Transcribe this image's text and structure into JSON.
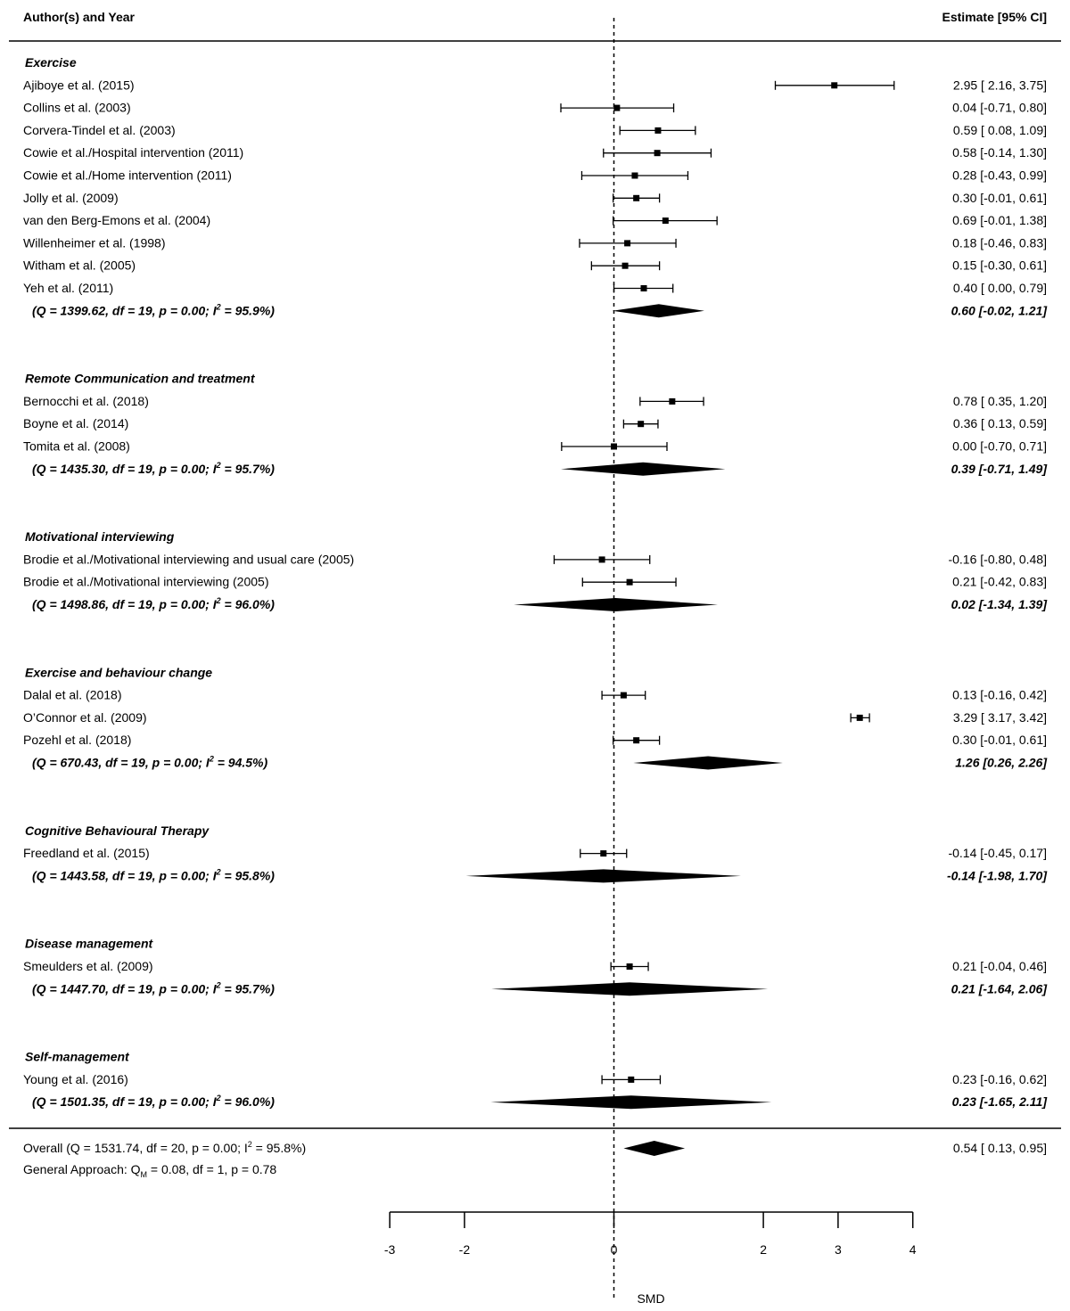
{
  "chart_data": {
    "type": "forest",
    "header": {
      "left": "Author(s) and Year",
      "right": "Estimate [95% CI]"
    },
    "groups": [
      {
        "name": "Exercise",
        "studies": [
          {
            "label": "Ajiboye et al. (2015)",
            "est": 2.95,
            "lo": 2.16,
            "hi": 3.75,
            "text": "2.95 [ 2.16, 3.75]"
          },
          {
            "label": "Collins et al. (2003)",
            "est": 0.04,
            "lo": -0.71,
            "hi": 0.8,
            "text": "0.04 [-0.71, 0.80]"
          },
          {
            "label": "Corvera-Tindel et al. (2003)",
            "est": 0.59,
            "lo": 0.08,
            "hi": 1.09,
            "text": "0.59 [ 0.08, 1.09]"
          },
          {
            "label": "Cowie et al./Hospital intervention (2011)",
            "est": 0.58,
            "lo": -0.14,
            "hi": 1.3,
            "text": "0.58 [-0.14, 1.30]"
          },
          {
            "label": "Cowie et al./Home intervention (2011)",
            "est": 0.28,
            "lo": -0.43,
            "hi": 0.99,
            "text": "0.28 [-0.43, 0.99]"
          },
          {
            "label": "Jolly et al. (2009)",
            "est": 0.3,
            "lo": -0.01,
            "hi": 0.61,
            "text": "0.30 [-0.01, 0.61]"
          },
          {
            "label": "van den Berg-Emons et al. (2004)",
            "est": 0.69,
            "lo": -0.01,
            "hi": 1.38,
            "text": "0.69 [-0.01, 1.38]"
          },
          {
            "label": "Willenheimer et al. (1998)",
            "est": 0.18,
            "lo": -0.46,
            "hi": 0.83,
            "text": "0.18 [-0.46, 0.83]"
          },
          {
            "label": "Witham et al. (2005)",
            "est": 0.15,
            "lo": -0.3,
            "hi": 0.61,
            "text": "0.15 [-0.30, 0.61]"
          },
          {
            "label": "Yeh et al. (2011)",
            "est": 0.4,
            "lo": 0.0,
            "hi": 0.79,
            "text": "0.40 [ 0.00, 0.79]"
          }
        ],
        "summary": {
          "q_text": "(Q = 1399.62, df = 19, p = 0.00; I",
          "pct_text": " = 95.9%)",
          "est": 0.6,
          "lo": -0.02,
          "hi": 1.21,
          "text": "0.60 [-0.02, 1.21]"
        }
      },
      {
        "name": "Remote Communication and treatment",
        "studies": [
          {
            "label": "Bernocchi et al. (2018)",
            "est": 0.78,
            "lo": 0.35,
            "hi": 1.2,
            "text": "0.78 [ 0.35, 1.20]"
          },
          {
            "label": "Boyne et al. (2014)",
            "est": 0.36,
            "lo": 0.13,
            "hi": 0.59,
            "text": "0.36 [ 0.13, 0.59]"
          },
          {
            "label": "Tomita et al. (2008)",
            "est": 0.0,
            "lo": -0.7,
            "hi": 0.71,
            "text": "0.00 [-0.70, 0.71]"
          }
        ],
        "summary": {
          "q_text": "(Q = 1435.30, df = 19, p = 0.00; I",
          "pct_text": " = 95.7%)",
          "est": 0.39,
          "lo": -0.71,
          "hi": 1.49,
          "text": "0.39 [-0.71, 1.49]"
        }
      },
      {
        "name": "Motivational interviewing",
        "studies": [
          {
            "label": "Brodie et al./Motivational interviewing and usual care (2005)",
            "est": -0.16,
            "lo": -0.8,
            "hi": 0.48,
            "text": "-0.16 [-0.80, 0.48]"
          },
          {
            "label": "Brodie et al./Motivational interviewing (2005)",
            "est": 0.21,
            "lo": -0.42,
            "hi": 0.83,
            "text": "0.21 [-0.42, 0.83]"
          }
        ],
        "summary": {
          "q_text": "(Q = 1498.86, df = 19, p = 0.00; I",
          "pct_text": " = 96.0%)",
          "est": 0.02,
          "lo": -1.34,
          "hi": 1.39,
          "text": "0.02 [-1.34, 1.39]"
        }
      },
      {
        "name": "Exercise and behaviour change",
        "studies": [
          {
            "label": "Dalal et al. (2018)",
            "est": 0.13,
            "lo": -0.16,
            "hi": 0.42,
            "text": "0.13 [-0.16, 0.42]"
          },
          {
            "label": "O’Connor et al. (2009)",
            "est": 3.29,
            "lo": 3.17,
            "hi": 3.42,
            "text": "3.29 [ 3.17, 3.42]"
          },
          {
            "label": "Pozehl et al. (2018)",
            "est": 0.3,
            "lo": -0.01,
            "hi": 0.61,
            "text": "0.30 [-0.01, 0.61]"
          }
        ],
        "summary": {
          "q_text": "(Q = 670.43, df = 19, p = 0.00; I",
          "pct_text": " = 94.5%)",
          "est": 1.26,
          "lo": 0.26,
          "hi": 2.26,
          "text": "1.26 [0.26, 2.26]"
        }
      },
      {
        "name": "Cognitive Behavioural Therapy",
        "studies": [
          {
            "label": "Freedland et al. (2015)",
            "est": -0.14,
            "lo": -0.45,
            "hi": 0.17,
            "text": "-0.14 [-0.45, 0.17]"
          }
        ],
        "summary": {
          "q_text": "(Q = 1443.58, df = 19, p = 0.00; I",
          "pct_text": " = 95.8%)",
          "est": -0.14,
          "lo": -1.98,
          "hi": 1.7,
          "text": "-0.14 [-1.98, 1.70]"
        }
      },
      {
        "name": "Disease management",
        "studies": [
          {
            "label": "Smeulders et al. (2009)",
            "est": 0.21,
            "lo": -0.04,
            "hi": 0.46,
            "text": "0.21 [-0.04, 0.46]"
          }
        ],
        "summary": {
          "q_text": "(Q = 1447.70, df = 19, p = 0.00; I",
          "pct_text": " = 95.7%)",
          "est": 0.21,
          "lo": -1.64,
          "hi": 2.06,
          "text": "0.21 [-1.64, 2.06]"
        }
      },
      {
        "name": "Self-management",
        "studies": [
          {
            "label": "Young et al. (2016)",
            "est": 0.23,
            "lo": -0.16,
            "hi": 0.62,
            "text": "0.23 [-0.16, 0.62]"
          }
        ],
        "summary": {
          "q_text": "(Q = 1501.35, df = 19, p = 0.00; I",
          "pct_text": " = 96.0%)",
          "est": 0.23,
          "lo": -1.65,
          "hi": 2.11,
          "text": "0.23 [-1.65, 2.11]"
        }
      }
    ],
    "overall": {
      "q_text": "Overall (Q = 1531.74, df = 20, p = 0.00; I",
      "pct_text": " = 95.8%)",
      "est": 0.54,
      "lo": 0.13,
      "hi": 0.95,
      "text": "0.54 [ 0.13, 0.95]"
    },
    "approach": {
      "prefix": "General Approach: Q",
      "subscript": "M",
      "suffix": " = 0.08, df = 1, p = 0.78"
    },
    "superscript": "2",
    "x_ticks": [
      -3,
      -2,
      0,
      2,
      3,
      4
    ],
    "xlim": [
      -3,
      4
    ],
    "reference_line": 0,
    "xlabel": "SMD"
  }
}
